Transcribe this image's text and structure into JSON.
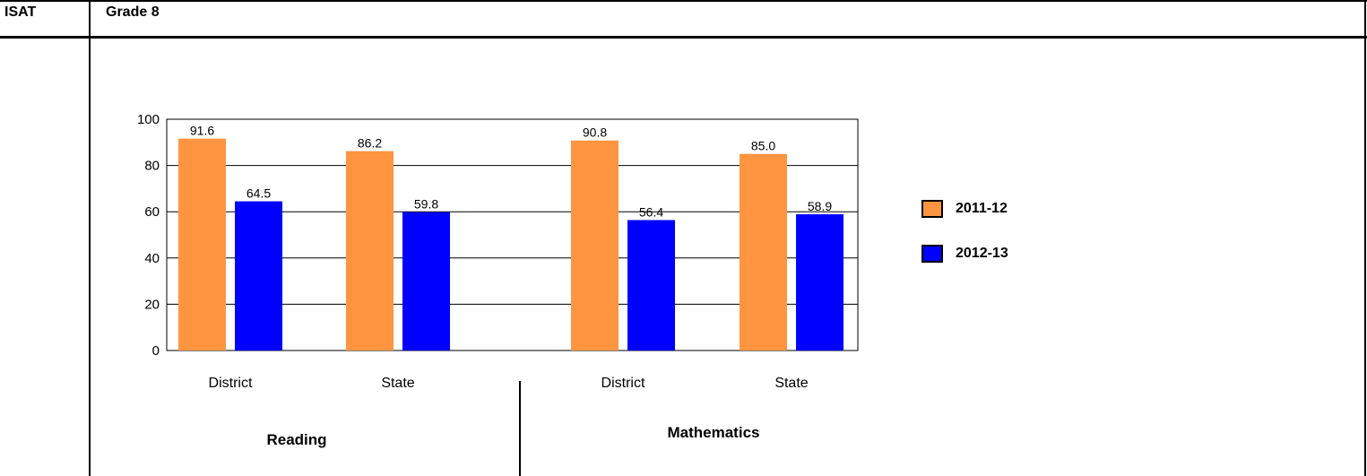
{
  "header": {
    "test": "ISAT",
    "grade": "Grade 8"
  },
  "legend": [
    {
      "label": "2011-12",
      "color": "#FF9540"
    },
    {
      "label": "2012-13",
      "color": "#0000FF"
    }
  ],
  "subjects": [
    "Reading",
    "Mathematics"
  ],
  "chart_data": {
    "type": "bar",
    "categories": [
      "District",
      "State",
      "District",
      "State"
    ],
    "groups": [
      "Reading",
      "Reading",
      "Mathematics",
      "Mathematics"
    ],
    "series": [
      {
        "name": "2011-12",
        "color": "#FF9540",
        "values": [
          91.6,
          86.2,
          90.8,
          85.0
        ]
      },
      {
        "name": "2012-13",
        "color": "#0000FF",
        "values": [
          64.5,
          59.8,
          56.4,
          58.9
        ]
      }
    ],
    "data_labels": [
      [
        "91.6",
        "86.2",
        "90.8",
        "85.0"
      ],
      [
        "64.5",
        "59.8",
        "56.4",
        "58.9"
      ]
    ],
    "ylim": [
      0,
      100
    ],
    "yticks": [
      0,
      20,
      40,
      60,
      80,
      100
    ],
    "grid": true,
    "legend_position": "right"
  }
}
